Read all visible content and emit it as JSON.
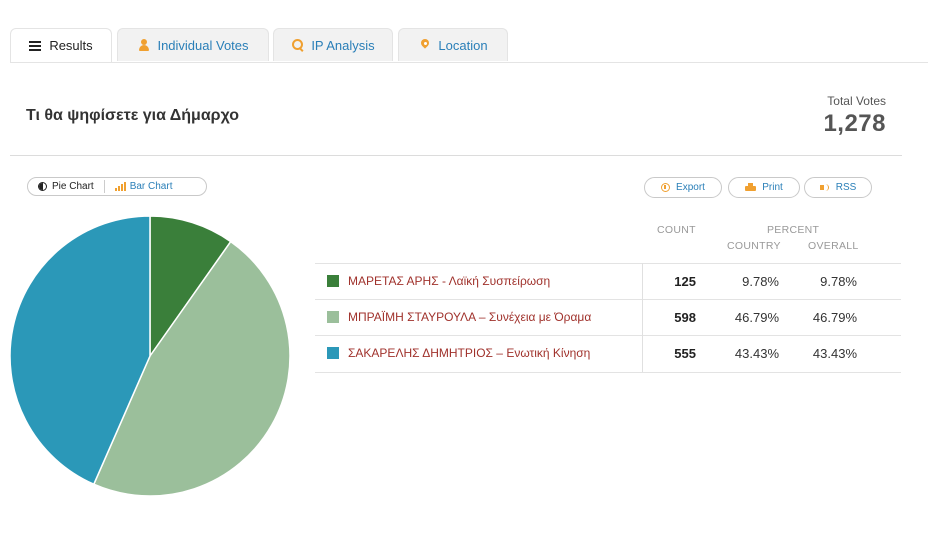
{
  "tabs": [
    {
      "label": "Results",
      "icon": "list-icon",
      "active": true
    },
    {
      "label": "Individual Votes",
      "icon": "user-icon",
      "active": false
    },
    {
      "label": "IP Analysis",
      "icon": "search-icon",
      "active": false
    },
    {
      "label": "Location",
      "icon": "map-pin-icon",
      "active": false
    }
  ],
  "poll": {
    "title": "Τι θα ψηφίσετε για Δήμαρχο",
    "total_label": "Total Votes",
    "total_value": "1,278"
  },
  "chart_toggle": {
    "pie_label": "Pie Chart",
    "bar_label": "Bar Chart"
  },
  "actions": {
    "export_label": "Export",
    "print_label": "Print",
    "rss_label": "RSS"
  },
  "table": {
    "headers": {
      "count": "COUNT",
      "percent": "PERCENT",
      "country": "COUNTRY",
      "overall": "OVERALL"
    },
    "rows": [
      {
        "name": "ΜΑΡΕΤΑΣ ΑΡΗΣ - Λαϊκή Συσπείρωση",
        "count": "125",
        "country": "9.78%",
        "overall": "9.78%",
        "color": "#3a7f3a"
      },
      {
        "name": "ΜΠΡΑΪΜΗ ΣΤΑΥΡΟΥΛΑ – Συνέχεια με Όραμα",
        "count": "598",
        "country": "46.79%",
        "overall": "46.79%",
        "color": "#9bbf9b"
      },
      {
        "name": "ΣΑΚΑΡΕΛΗΣ ΔΗΜΗΤΡΙΟΣ – Ενωτική Κίνηση",
        "count": "555",
        "country": "43.43%",
        "overall": "43.43%",
        "color": "#2b98b8"
      }
    ]
  },
  "chart_data": {
    "type": "pie",
    "categories": [
      "ΜΑΡΕΤΑΣ ΑΡΗΣ - Λαϊκή Συσπείρωση",
      "ΜΠΡΑΪΜΗ ΣΤΑΥΡΟΥΛΑ – Συνέχεια με Όραμα",
      "ΣΑΚΑΡΕΛΗΣ ΔΗΜΗΤΡΙΟΣ – Ενωτική Κίνηση"
    ],
    "values": [
      125,
      598,
      555
    ],
    "colors": [
      "#3a7f3a",
      "#9bbf9b",
      "#2b98b8"
    ]
  }
}
